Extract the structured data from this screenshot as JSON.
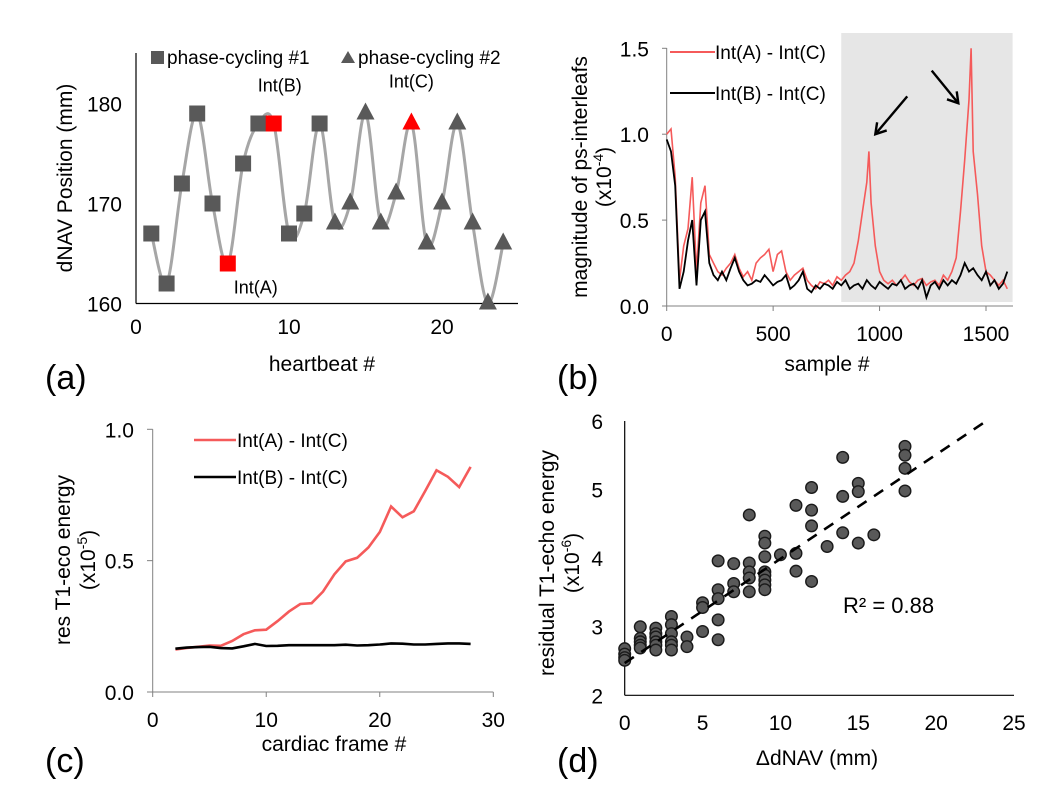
{
  "chart_data": [
    {
      "id": "a",
      "panel_label": "(a)",
      "type": "line",
      "title": "",
      "xlabel": "heartbeat #",
      "ylabel": "dNAV Position (mm)",
      "xlim": [
        0,
        25
      ],
      "ylim": [
        160,
        185
      ],
      "xticks": [
        0,
        10,
        20
      ],
      "yticks": [
        160,
        170,
        180
      ],
      "grid": false,
      "legend_position": "top",
      "connector_color": "#a6a6a6",
      "marker_color": "#595959",
      "highlight_color": "#ff0000",
      "series": [
        {
          "name": "phase-cycling #1",
          "marker": "square",
          "x": [
            1,
            2,
            3,
            4,
            5,
            6,
            7,
            8,
            9,
            10,
            11,
            12
          ],
          "y": [
            167,
            162,
            172,
            179,
            170,
            164,
            174,
            178,
            178,
            167,
            169,
            178
          ]
        },
        {
          "name": "phase-cycling #2",
          "marker": "triangle",
          "x": [
            13,
            14,
            15,
            16,
            17,
            18,
            19,
            20,
            21,
            22,
            23,
            24
          ],
          "y": [
            168,
            170,
            179,
            168,
            171,
            178,
            166,
            170,
            178,
            168,
            160,
            166
          ]
        }
      ],
      "highlights": [
        {
          "label": "Int(A)",
          "x": 6,
          "y": 164,
          "marker": "square"
        },
        {
          "label": "Int(B)",
          "x": 9,
          "y": 178,
          "marker": "square"
        },
        {
          "label": "Int(C)",
          "x": 18,
          "y": 178,
          "marker": "triangle"
        }
      ]
    },
    {
      "id": "b",
      "panel_label": "(b)",
      "type": "line",
      "title": "",
      "xlabel": "sample #",
      "ylabel": "magnitude  of ps-interleafs",
      "ylabel_unit": "(x10",
      "ylabel_exp": "-4",
      "ylabel_close": ")",
      "xlim": [
        0,
        1620
      ],
      "ylim": [
        0,
        1.5
      ],
      "xticks": [
        0,
        500,
        1000,
        1500
      ],
      "yticks": [
        "0.0",
        "0.5",
        "1.0",
        "1.5"
      ],
      "grid": false,
      "legend_position": "top-left",
      "shaded_region": {
        "x": [
          820,
          1625
        ],
        "color": "#e6e6e6"
      },
      "arrows": [
        {
          "from": [
            1130,
            1.22
          ],
          "to": [
            980,
            1.0
          ]
        },
        {
          "from": [
            1245,
            1.37
          ],
          "to": [
            1370,
            1.18
          ]
        }
      ],
      "series": [
        {
          "name": "Int(A) - Int(C)",
          "color": "#f55a5a",
          "x": [
            0,
            20,
            40,
            60,
            80,
            100,
            120,
            140,
            160,
            180,
            200,
            220,
            240,
            260,
            280,
            300,
            320,
            340,
            360,
            380,
            400,
            420,
            440,
            460,
            480,
            500,
            520,
            540,
            560,
            580,
            600,
            620,
            640,
            660,
            680,
            700,
            720,
            740,
            760,
            780,
            800,
            820,
            840,
            860,
            880,
            900,
            920,
            940,
            950,
            960,
            980,
            1000,
            1020,
            1040,
            1060,
            1080,
            1100,
            1120,
            1140,
            1160,
            1180,
            1200,
            1220,
            1240,
            1260,
            1280,
            1300,
            1320,
            1340,
            1360,
            1380,
            1400,
            1420,
            1430,
            1440,
            1460,
            1480,
            1500,
            1520,
            1540,
            1560,
            1580,
            1600
          ],
          "y": [
            1.0,
            1.03,
            0.75,
            0.15,
            0.35,
            0.45,
            0.75,
            0.2,
            0.6,
            0.7,
            0.3,
            0.25,
            0.2,
            0.18,
            0.22,
            0.25,
            0.3,
            0.22,
            0.17,
            0.2,
            0.15,
            0.25,
            0.28,
            0.3,
            0.33,
            0.2,
            0.3,
            0.32,
            0.2,
            0.15,
            0.18,
            0.2,
            0.22,
            0.15,
            0.12,
            0.1,
            0.14,
            0.13,
            0.15,
            0.12,
            0.17,
            0.15,
            0.18,
            0.2,
            0.25,
            0.38,
            0.55,
            0.72,
            0.9,
            0.6,
            0.35,
            0.2,
            0.15,
            0.13,
            0.15,
            0.12,
            0.15,
            0.18,
            0.14,
            0.12,
            0.15,
            0.16,
            0.12,
            0.14,
            0.15,
            0.12,
            0.18,
            0.15,
            0.2,
            0.28,
            0.55,
            0.85,
            1.2,
            1.5,
            0.9,
            0.65,
            0.35,
            0.2,
            0.18,
            0.15,
            0.12,
            0.15,
            0.1
          ]
        },
        {
          "name": "Int(B) - Int(C)",
          "color": "#000000",
          "x": [
            0,
            20,
            40,
            60,
            80,
            100,
            120,
            140,
            160,
            180,
            200,
            220,
            240,
            260,
            280,
            300,
            320,
            340,
            360,
            380,
            400,
            420,
            440,
            460,
            480,
            500,
            520,
            540,
            560,
            580,
            600,
            620,
            640,
            660,
            680,
            700,
            720,
            740,
            760,
            780,
            800,
            820,
            840,
            860,
            880,
            900,
            920,
            940,
            960,
            980,
            1000,
            1020,
            1040,
            1060,
            1080,
            1100,
            1120,
            1140,
            1160,
            1180,
            1200,
            1220,
            1240,
            1260,
            1280,
            1300,
            1320,
            1340,
            1360,
            1380,
            1400,
            1420,
            1440,
            1460,
            1480,
            1500,
            1520,
            1540,
            1560,
            1580,
            1600
          ],
          "y": [
            0.97,
            0.9,
            0.7,
            0.1,
            0.2,
            0.38,
            0.5,
            0.12,
            0.5,
            0.55,
            0.25,
            0.18,
            0.15,
            0.2,
            0.15,
            0.22,
            0.28,
            0.2,
            0.15,
            0.12,
            0.13,
            0.15,
            0.14,
            0.18,
            0.15,
            0.12,
            0.14,
            0.15,
            0.18,
            0.1,
            0.12,
            0.15,
            0.2,
            0.1,
            0.08,
            0.12,
            0.1,
            0.13,
            0.12,
            0.1,
            0.14,
            0.12,
            0.15,
            0.1,
            0.12,
            0.13,
            0.1,
            0.15,
            0.12,
            0.1,
            0.14,
            0.12,
            0.1,
            0.13,
            0.12,
            0.15,
            0.1,
            0.12,
            0.13,
            0.1,
            0.15,
            0.05,
            0.12,
            0.14,
            0.1,
            0.15,
            0.12,
            0.15,
            0.13,
            0.18,
            0.25,
            0.2,
            0.22,
            0.18,
            0.15,
            0.2,
            0.12,
            0.15,
            0.1,
            0.13,
            0.2
          ]
        }
      ]
    },
    {
      "id": "c",
      "panel_label": "(c)",
      "type": "line",
      "title": "",
      "xlabel": "cardiac frame #",
      "ylabel": "res T1-eco energy",
      "ylabel_unit": "(x10",
      "ylabel_exp": "-5",
      "ylabel_close": ")",
      "xlim": [
        0,
        30
      ],
      "ylim": [
        0,
        1.0
      ],
      "xticks": [
        0,
        10,
        20,
        30
      ],
      "yticks": [
        "0.0",
        "0.5",
        "1.0"
      ],
      "grid": false,
      "legend_position": "top-left",
      "series": [
        {
          "name": "Int(A) - Int(C)",
          "color": "#f55a5a",
          "x": [
            2,
            3,
            4,
            5,
            6,
            7,
            8,
            9,
            10,
            11,
            12,
            13,
            14,
            15,
            16,
            17,
            18,
            19,
            20,
            21,
            22,
            23,
            24,
            25,
            26,
            27,
            28
          ],
          "y": [
            0.162,
            0.168,
            0.172,
            0.177,
            0.176,
            0.194,
            0.22,
            0.235,
            0.237,
            0.27,
            0.306,
            0.335,
            0.338,
            0.382,
            0.448,
            0.497,
            0.511,
            0.55,
            0.609,
            0.706,
            0.665,
            0.688,
            0.765,
            0.844,
            0.819,
            0.78,
            0.857
          ]
        },
        {
          "name": "Int(B) - Int(C)",
          "color": "#000000",
          "x": [
            2,
            3,
            4,
            5,
            6,
            7,
            8,
            9,
            10,
            11,
            12,
            13,
            14,
            15,
            16,
            17,
            18,
            19,
            20,
            21,
            22,
            23,
            24,
            25,
            26,
            27,
            28
          ],
          "y": [
            0.165,
            0.169,
            0.171,
            0.172,
            0.167,
            0.166,
            0.174,
            0.183,
            0.175,
            0.176,
            0.178,
            0.178,
            0.178,
            0.178,
            0.178,
            0.18,
            0.177,
            0.178,
            0.181,
            0.185,
            0.184,
            0.181,
            0.181,
            0.183,
            0.185,
            0.185,
            0.183
          ]
        }
      ]
    },
    {
      "id": "d",
      "panel_label": "(d)",
      "type": "scatter",
      "title": "",
      "xlabel": "ΔdNAV (mm)",
      "ylabel": "residual T1-echo energy",
      "ylabel_unit": "(x10",
      "ylabel_exp": "-6",
      "ylabel_close": ")",
      "xlim": [
        0,
        25
      ],
      "ylim": [
        2,
        6
      ],
      "xticks": [
        0,
        5,
        10,
        15,
        20,
        25
      ],
      "yticks": [
        2,
        3,
        4,
        5,
        6
      ],
      "grid": false,
      "marker_color": "#595959",
      "annotation": "R² = 0.88",
      "trendline": {
        "type": "linear",
        "intercept": 2.47,
        "slope": 0.152,
        "x_range": [
          0,
          23.1
        ]
      },
      "points": {
        "x": [
          0,
          0,
          0,
          0,
          1,
          1,
          1,
          1,
          1,
          2,
          2,
          2,
          2,
          2,
          2,
          3,
          3,
          3,
          3,
          3,
          3,
          4,
          4,
          5,
          5,
          5,
          6,
          6,
          6,
          6,
          6,
          7,
          7,
          7,
          8,
          8,
          8,
          8,
          8,
          9,
          9,
          9,
          9,
          9,
          9,
          9,
          9,
          10,
          11,
          11,
          11,
          12,
          12,
          12,
          12,
          13,
          14,
          14,
          14,
          15,
          15,
          15,
          16,
          18,
          18,
          18,
          18
        ],
        "y": [
          2.68,
          2.6,
          2.55,
          2.51,
          3.0,
          2.83,
          2.78,
          2.73,
          2.69,
          2.98,
          2.9,
          2.85,
          2.78,
          2.73,
          2.66,
          3.15,
          3.03,
          2.9,
          2.78,
          2.73,
          2.66,
          2.85,
          2.71,
          3.35,
          3.28,
          2.93,
          3.96,
          3.54,
          3.41,
          3.1,
          2.81,
          3.92,
          3.63,
          3.51,
          4.63,
          3.93,
          3.8,
          3.71,
          3.51,
          4.32,
          4.22,
          4.02,
          3.8,
          3.75,
          3.68,
          3.61,
          3.54,
          4.05,
          4.77,
          4.07,
          3.81,
          5.03,
          4.7,
          4.47,
          3.66,
          4.17,
          5.47,
          4.9,
          4.37,
          5.09,
          4.97,
          4.22,
          4.34,
          5.63,
          5.5,
          5.31,
          4.98
        ]
      }
    }
  ]
}
